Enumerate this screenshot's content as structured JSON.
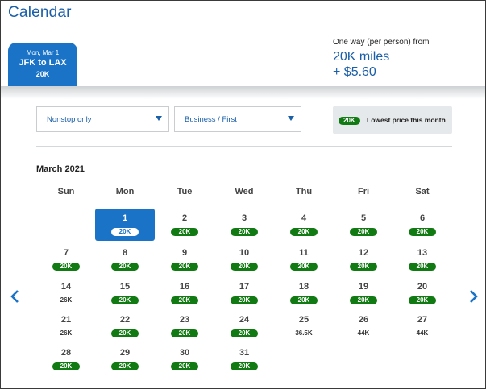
{
  "title": "Calendar",
  "segment": {
    "date": "Mon, Mar 1",
    "route": "JFK to LAX",
    "miles": "20K"
  },
  "price": {
    "label": "One way (per person) from",
    "miles": "20K miles",
    "fee": "+ $5.60"
  },
  "filters": {
    "stops": "Nonstop only",
    "cabin": "Business / First"
  },
  "legend": {
    "pill": "20K",
    "text": "Lowest price this month"
  },
  "month": "March 2021",
  "weekdays": [
    "Sun",
    "Mon",
    "Tue",
    "Wed",
    "Thu",
    "Fri",
    "Sat"
  ],
  "days": [
    {
      "d": "1",
      "price": "20K",
      "lowest": true,
      "selected": true
    },
    {
      "d": "2",
      "price": "20K",
      "lowest": true
    },
    {
      "d": "3",
      "price": "20K",
      "lowest": true
    },
    {
      "d": "4",
      "price": "20K",
      "lowest": true
    },
    {
      "d": "5",
      "price": "20K",
      "lowest": true
    },
    {
      "d": "6",
      "price": "20K",
      "lowest": true
    },
    {
      "d": "7",
      "price": "20K",
      "lowest": true
    },
    {
      "d": "8",
      "price": "20K",
      "lowest": true
    },
    {
      "d": "9",
      "price": "20K",
      "lowest": true
    },
    {
      "d": "10",
      "price": "20K",
      "lowest": true
    },
    {
      "d": "11",
      "price": "20K",
      "lowest": true
    },
    {
      "d": "12",
      "price": "20K",
      "lowest": true
    },
    {
      "d": "13",
      "price": "20K",
      "lowest": true
    },
    {
      "d": "14",
      "price": "26K",
      "lowest": false
    },
    {
      "d": "15",
      "price": "20K",
      "lowest": true
    },
    {
      "d": "16",
      "price": "20K",
      "lowest": true
    },
    {
      "d": "17",
      "price": "20K",
      "lowest": true
    },
    {
      "d": "18",
      "price": "20K",
      "lowest": true
    },
    {
      "d": "19",
      "price": "20K",
      "lowest": true
    },
    {
      "d": "20",
      "price": "20K",
      "lowest": true
    },
    {
      "d": "21",
      "price": "26K",
      "lowest": false
    },
    {
      "d": "22",
      "price": "20K",
      "lowest": true
    },
    {
      "d": "23",
      "price": "20K",
      "lowest": true
    },
    {
      "d": "24",
      "price": "20K",
      "lowest": true
    },
    {
      "d": "25",
      "price": "36.5K",
      "lowest": false
    },
    {
      "d": "26",
      "price": "44K",
      "lowest": false
    },
    {
      "d": "27",
      "price": "44K",
      "lowest": false
    },
    {
      "d": "28",
      "price": "20K",
      "lowest": true
    },
    {
      "d": "29",
      "price": "20K",
      "lowest": true
    },
    {
      "d": "30",
      "price": "20K",
      "lowest": true
    },
    {
      "d": "31",
      "price": "20K",
      "lowest": true
    }
  ],
  "colors": {
    "brand": "#1a73c6",
    "lowest": "#117a12"
  },
  "icons": {
    "prev": "chevron-left-icon",
    "next": "chevron-right-icon",
    "dropdown": "caret-down-icon"
  }
}
